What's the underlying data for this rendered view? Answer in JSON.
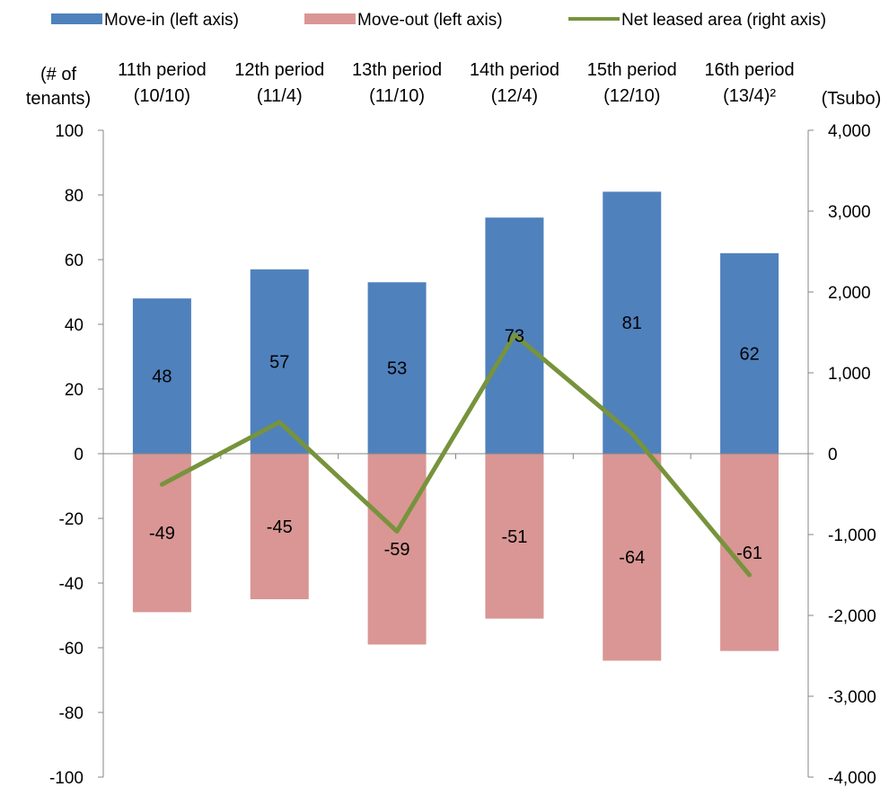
{
  "chart_data": {
    "type": "bar",
    "categories": [
      [
        "11th period",
        "(10/10)"
      ],
      [
        "12th period",
        "(11/4)"
      ],
      [
        "13th period",
        "(11/10)"
      ],
      [
        "14th period",
        "(12/4)"
      ],
      [
        "15th period",
        "(12/10)"
      ],
      [
        "16th period",
        "(13/4)²"
      ]
    ],
    "series": [
      {
        "name": "Move-in (left axis)",
        "kind": "bar",
        "axis": "left",
        "color": "#4F81BD",
        "values": [
          48,
          57,
          53,
          73,
          81,
          62
        ]
      },
      {
        "name": "Move-out (left axis)",
        "kind": "bar",
        "axis": "left",
        "color": "#D99694",
        "values": [
          -49,
          -45,
          -59,
          -51,
          -64,
          -61
        ]
      },
      {
        "name": "Net leased area (right axis)",
        "kind": "line",
        "axis": "right",
        "color": "#77933C",
        "values": [
          -380,
          390,
          -960,
          1470,
          250,
          -1500
        ]
      }
    ],
    "left_axis": {
      "title": [
        "(# of",
        "tenants)"
      ],
      "ylim": [
        -100,
        100
      ],
      "ticks": [
        100,
        80,
        60,
        40,
        20,
        0,
        -20,
        -40,
        -60,
        -80,
        -100
      ],
      "tick_labels": [
        "100",
        "80",
        "60",
        "40",
        "20",
        "0",
        "-20",
        "-40",
        "-60",
        "-80",
        "-100"
      ]
    },
    "right_axis": {
      "title": "(Tsubo)",
      "ylim": [
        -4000,
        4000
      ],
      "ticks": [
        4000,
        3000,
        2000,
        1000,
        0,
        -1000,
        -2000,
        -3000,
        -4000
      ],
      "tick_labels": [
        "4,000",
        "3,000",
        "2,000",
        "1,000",
        "0",
        "-1,000",
        "-2,000",
        "-3,000",
        "-4,000"
      ]
    },
    "data_labels": {
      "move_in": [
        "48",
        "57",
        "53",
        "73",
        "81",
        "62"
      ],
      "move_out": [
        "-49",
        "-45",
        "-59",
        "-51",
        "-64",
        "-61"
      ]
    },
    "legend": {
      "placement": "top",
      "items": [
        "Move-in (left axis)",
        "Move-out (left axis)",
        "Net leased area (right axis)"
      ]
    },
    "grid": false
  }
}
